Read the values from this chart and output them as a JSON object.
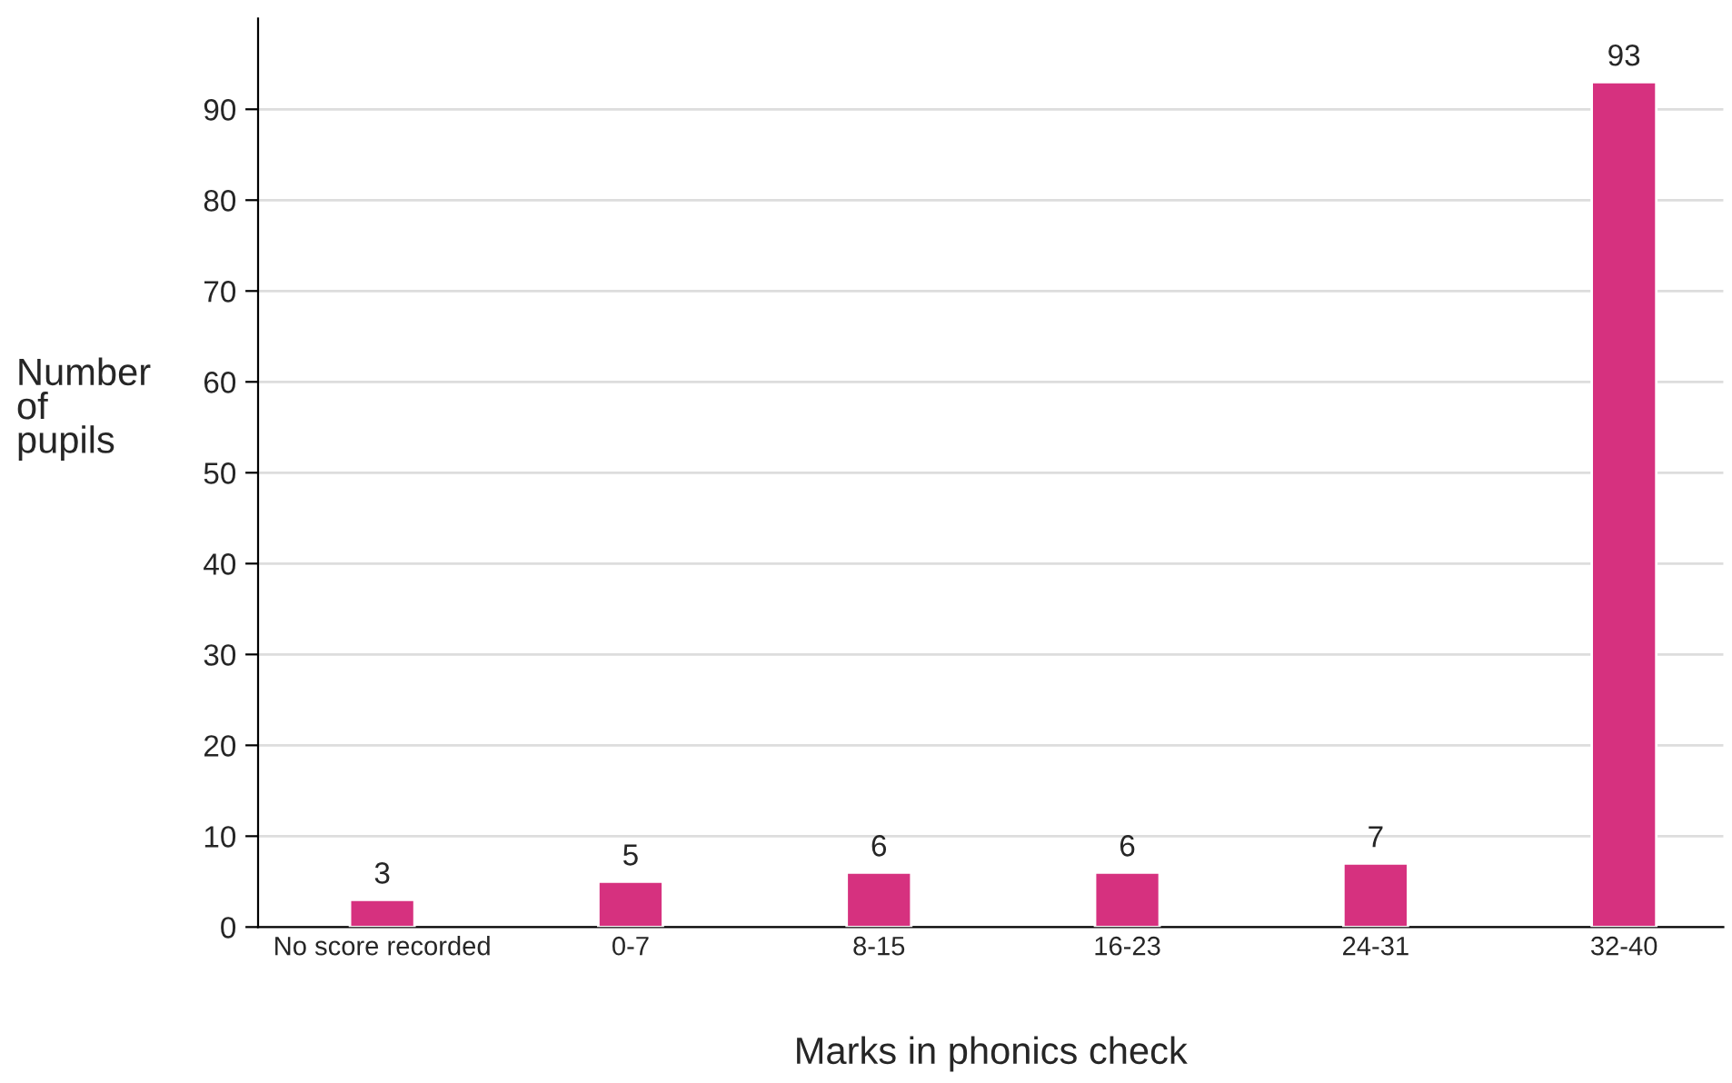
{
  "chart_data": {
    "type": "bar",
    "xlabel": "Marks in phonics check",
    "ylabel": "Number\nof\npupils",
    "categories": [
      "No score recorded",
      "0-7",
      "8-15",
      "16-23",
      "24-31",
      "32-40"
    ],
    "values": [
      3,
      5,
      6,
      6,
      7,
      93
    ],
    "color": "#d6317f",
    "ylim": [
      0,
      100
    ],
    "yticks": [
      0,
      10,
      20,
      30,
      40,
      50,
      60,
      70,
      80,
      90
    ],
    "grid": "y",
    "data_labels": true
  }
}
